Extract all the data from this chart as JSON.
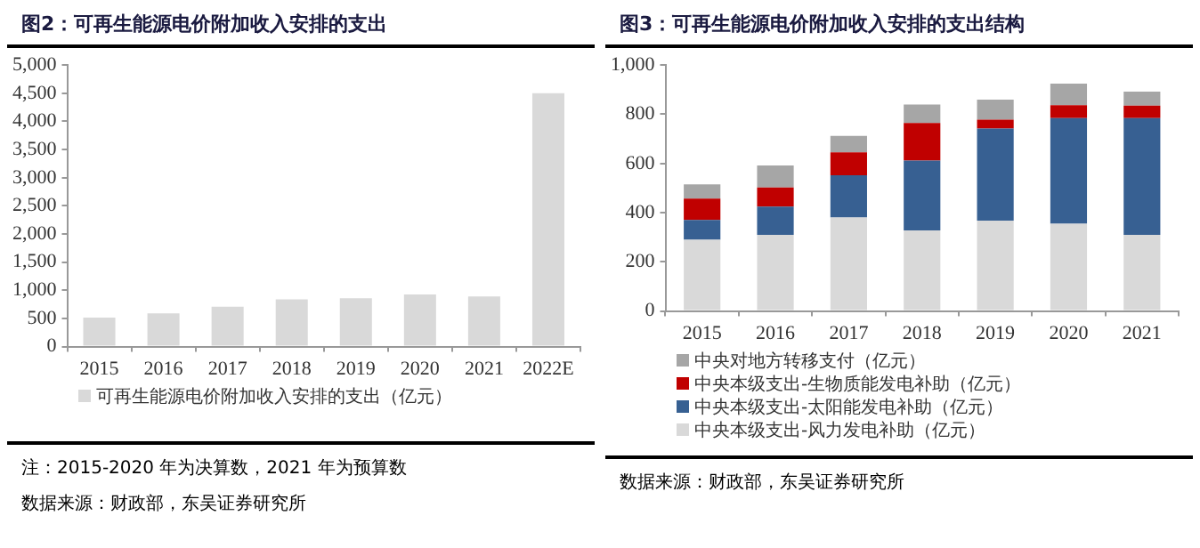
{
  "chart_data": [
    {
      "type": "bar",
      "title": "图2：可再生能源电价附加收入安排的支出",
      "categories": [
        "2015",
        "2016",
        "2017",
        "2018",
        "2019",
        "2020",
        "2021",
        "2022E"
      ],
      "series": [
        {
          "name": "可再生能源电价附加收入安排的支出（亿元）",
          "color": "#d9d9d9",
          "values": [
            515,
            590,
            710,
            840,
            860,
            925,
            890,
            4500
          ]
        }
      ],
      "ylim": [
        0,
        5000
      ],
      "yticks": [
        {
          "value": 0,
          "label": "0"
        },
        {
          "value": 500,
          "label": "500"
        },
        {
          "value": 1000,
          "label": "1,000"
        },
        {
          "value": 1500,
          "label": "1,500"
        },
        {
          "value": 2000,
          "label": "2,000"
        },
        {
          "value": 2500,
          "label": "2,500"
        },
        {
          "value": 3000,
          "label": "3,000"
        },
        {
          "value": 3500,
          "label": "3,500"
        },
        {
          "value": 4000,
          "label": "4,000"
        },
        {
          "value": 4500,
          "label": "4,500"
        },
        {
          "value": 5000,
          "label": "5,000"
        }
      ],
      "legend": "bottom",
      "annotations": [
        "注：2015-2020 年为决算数，2021 年为预算数",
        "数据来源：财政部，东吴证券研究所"
      ]
    },
    {
      "type": "bar",
      "title": "图3：可再生能源电价附加收入安排的支出结构",
      "categories": [
        "2015",
        "2016",
        "2017",
        "2018",
        "2019",
        "2020",
        "2021"
      ],
      "stacked": true,
      "series": [
        {
          "name": "中央本级支出-风力发电补助（亿元）",
          "color": "#d9d9d9",
          "values": [
            290,
            310,
            380,
            328,
            368,
            355,
            310
          ]
        },
        {
          "name": "中央本级支出-太阳能发电补助（亿元）",
          "color": "#376092",
          "values": [
            80,
            115,
            172,
            284,
            374,
            430,
            475
          ]
        },
        {
          "name": "中央本级支出-生物质能发电补助（亿元）",
          "color": "#c00000",
          "values": [
            87,
            77,
            93,
            153,
            36,
            52,
            50
          ]
        },
        {
          "name": "中央对地方转移支付（亿元）",
          "color": "#a6a6a6",
          "values": [
            58,
            90,
            67,
            75,
            82,
            88,
            57
          ]
        }
      ],
      "ylim": [
        0,
        1000
      ],
      "yticks": [
        {
          "value": 0,
          "label": "0"
        },
        {
          "value": 200,
          "label": "200"
        },
        {
          "value": 400,
          "label": "400"
        },
        {
          "value": 600,
          "label": "600"
        },
        {
          "value": 800,
          "label": "800"
        },
        {
          "value": 1000,
          "label": "1,000"
        }
      ],
      "legend": "bottom",
      "annotations": [
        "数据来源：财政部，东吴证券研究所"
      ]
    }
  ]
}
